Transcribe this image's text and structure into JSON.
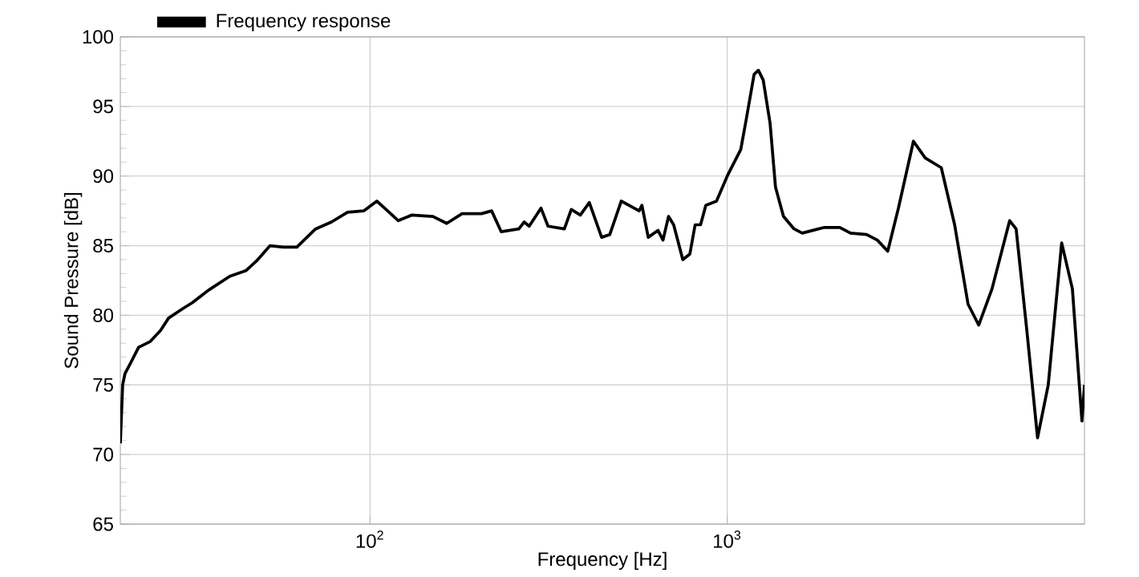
{
  "chart_data": {
    "type": "line",
    "xlabel": "Frequency  [Hz]",
    "ylabel": "Sound Pressure  [dB]",
    "log": "x",
    "x": [
      20,
      20.3,
      20.6,
      21.4,
      22.5,
      24.2,
      25.9,
      27.3,
      30,
      31.8,
      35.3,
      40.5,
      44.9,
      48.1,
      52.5,
      57.2,
      62.4,
      70.4,
      78,
      86.5,
      96,
      104.5,
      112,
      120,
      131,
      150,
      164,
      181,
      205,
      219,
      233,
      261,
      270,
      279,
      301,
      315,
      350,
      366,
      388,
      411,
      445,
      469,
      505,
      567,
      577,
      601,
      640,
      661,
      685,
      708,
      751,
      786,
      813,
      842,
      871,
      933,
      1000,
      1091,
      1129,
      1189,
      1222,
      1261,
      1318,
      1365,
      1437,
      1539,
      1622,
      1862,
      2066,
      2214,
      2455,
      2632,
      2814,
      3015,
      3321,
      3584,
      3975,
      4331,
      4722,
      5059,
      5512,
      6176,
      6438,
      6899,
      7392,
      7920,
      8635,
      9252,
      9840,
      10000
    ],
    "series": [
      {
        "name": "Frequency response",
        "color": "#000000",
        "values": [
          70.8,
          75.0,
          75.8,
          76.6,
          77.7,
          78.1,
          78.9,
          79.8,
          80.5,
          80.9,
          81.8,
          82.8,
          83.2,
          83.9,
          85.0,
          84.9,
          84.9,
          86.2,
          86.7,
          87.4,
          87.5,
          88.2,
          87.5,
          86.8,
          87.2,
          87.1,
          86.6,
          87.3,
          87.3,
          87.5,
          86.0,
          86.2,
          86.7,
          86.4,
          87.7,
          86.4,
          86.2,
          87.6,
          87.2,
          88.1,
          85.6,
          85.8,
          88.2,
          87.5,
          87.9,
          85.6,
          86.1,
          85.4,
          87.1,
          86.5,
          84.0,
          84.4,
          86.5,
          86.5,
          87.9,
          88.2,
          90.0,
          91.9,
          94.0,
          97.3,
          97.6,
          96.9,
          93.8,
          89.2,
          87.1,
          86.2,
          85.9,
          86.3,
          86.3,
          85.9,
          85.8,
          85.4,
          84.6,
          87.7,
          92.5,
          91.3,
          90.6,
          86.5,
          80.8,
          79.3,
          81.9,
          86.8,
          86.2,
          78.9,
          71.2,
          75.0,
          85.2,
          81.9,
          72.4,
          75.0
        ]
      }
    ],
    "xlim": [
      20,
      10000
    ],
    "ylim": [
      65,
      100
    ],
    "xticks": [
      {
        "value": 100,
        "label": "10$^{2}$"
      },
      {
        "value": 1000,
        "label": "10$^{3}$"
      }
    ],
    "yticks": [
      65,
      70,
      75,
      80,
      85,
      90,
      95,
      100
    ],
    "grid": true,
    "legend": "top left",
    "marker": "none",
    "line_style": "solid"
  }
}
